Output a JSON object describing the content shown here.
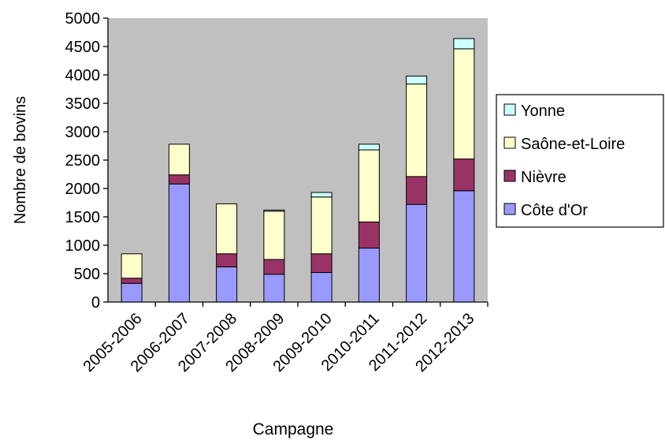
{
  "chart_data": {
    "type": "bar",
    "stacked": true,
    "title": "",
    "xlabel": "Campagne",
    "ylabel": "Nombre de bovins",
    "ylim": [
      0,
      5000
    ],
    "yticks": [
      "0",
      "500",
      "1000",
      "1500",
      "2000",
      "2500",
      "3000",
      "3500",
      "4000",
      "4500",
      "5000"
    ],
    "grid": false,
    "plot_background": "#c0c0c0",
    "legend_position": "right",
    "categories": [
      "2005-2006",
      "2006-2007",
      "2007-2008",
      "2008-2009",
      "2009-2010",
      "2010-2011",
      "2011-2012",
      "2012-2013"
    ],
    "series": [
      {
        "name": "Côte d'Or",
        "color": "#9999ff",
        "values": [
          330,
          2080,
          620,
          490,
          520,
          950,
          1720,
          1960
        ]
      },
      {
        "name": "Nièvre",
        "color": "#993366",
        "values": [
          90,
          160,
          230,
          260,
          330,
          460,
          490,
          560
        ]
      },
      {
        "name": "Saône-et-Loire",
        "color": "#ffffcc",
        "values": [
          430,
          540,
          880,
          850,
          1000,
          1270,
          1630,
          1940
        ]
      },
      {
        "name": "Yonne",
        "color": "#ccffff",
        "values": [
          0,
          0,
          0,
          20,
          80,
          100,
          140,
          180
        ]
      }
    ],
    "legend_order": [
      "Yonne",
      "Saône-et-Loire",
      "Nièvre",
      "Côte d'Or"
    ]
  }
}
